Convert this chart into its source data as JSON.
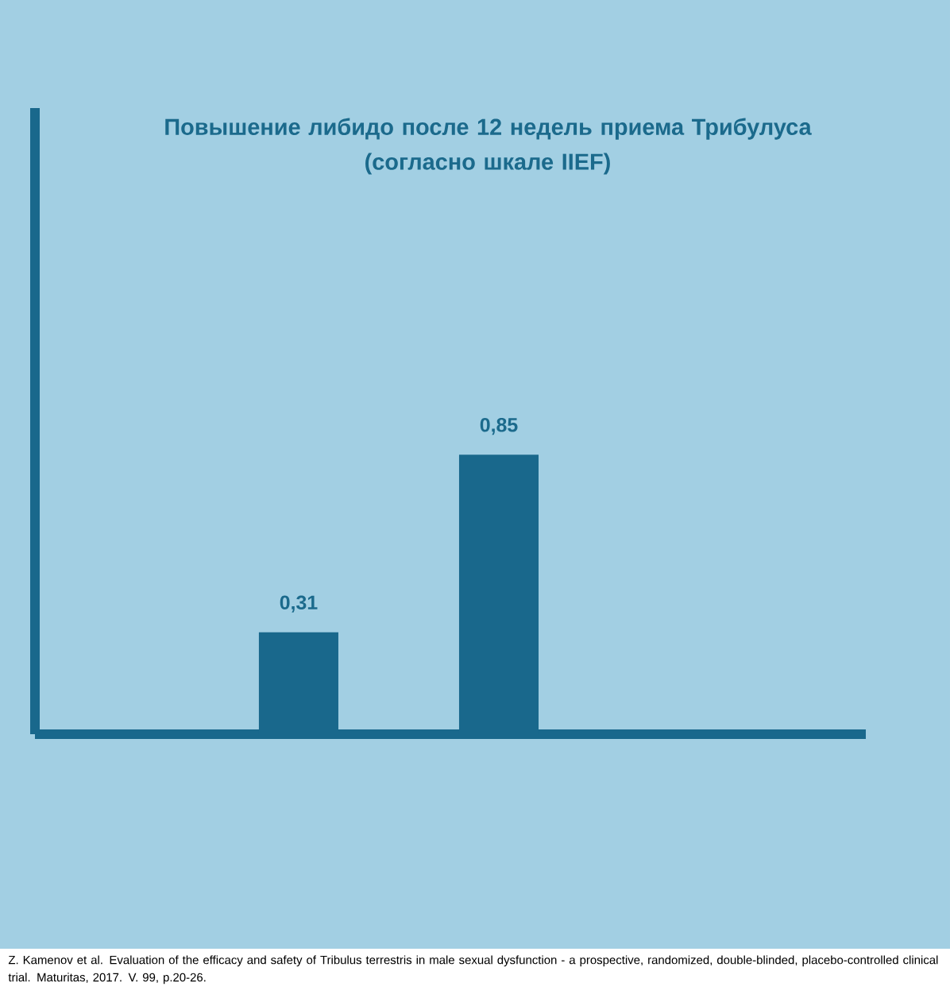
{
  "chart_data": {
    "type": "bar",
    "title": "Повышение либидо после 12 недель приема Трибулуса\n(согласно шкале IIEF)",
    "categories": [
      null,
      null
    ],
    "values": [
      0.31,
      0.85
    ],
    "color": "#19688c",
    "value_labels": [
      "0,31",
      "0,85"
    ],
    "annotations": [
      "Z. Kamenov et al. Evaluation of the efficacy and safety of Tribulus terrestris in male sexual dysfunction - a prospective, randomized, double-blinded, placebo-controlled clinical trial. Maturitas, 2017. V. 99, p.20-26."
    ]
  }
}
